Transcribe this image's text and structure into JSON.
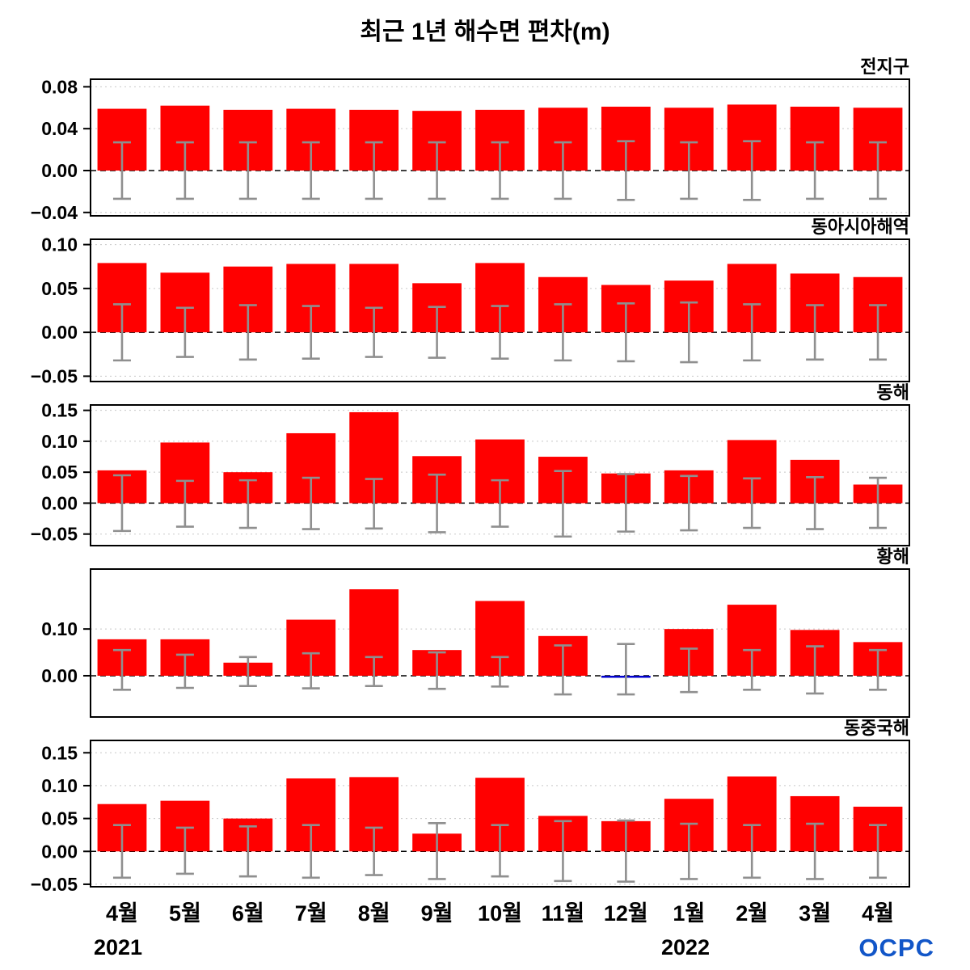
{
  "title": "최근 1년 해수면 편차(m)",
  "colors": {
    "bar": "#ff0000",
    "negative_bar": "#0000cc",
    "error_bar": "#8f8f8f",
    "grid": "#c8c8c8",
    "frame": "#000000",
    "logo": "#1256c8"
  },
  "x_axis": {
    "labels": [
      "4월",
      "5월",
      "6월",
      "7월",
      "8월",
      "9월",
      "10월",
      "11월",
      "12월",
      "1월",
      "2월",
      "3월",
      "4월"
    ],
    "year_left": "2021",
    "year_right": "2022"
  },
  "footer": {
    "logo_text": "OCPC"
  },
  "chart_data": [
    {
      "type": "bar",
      "title": "전지구",
      "categories": [
        "4월",
        "5월",
        "6월",
        "7월",
        "8월",
        "9월",
        "10월",
        "11월",
        "12월",
        "1월",
        "2월",
        "3월",
        "4월"
      ],
      "values": [
        0.059,
        0.062,
        0.058,
        0.059,
        0.058,
        0.057,
        0.058,
        0.06,
        0.061,
        0.06,
        0.063,
        0.061,
        0.06
      ],
      "err_up": [
        0.027,
        0.027,
        0.027,
        0.027,
        0.027,
        0.027,
        0.027,
        0.027,
        0.028,
        0.027,
        0.028,
        0.027,
        0.027
      ],
      "err_down": [
        0.027,
        0.027,
        0.027,
        0.027,
        0.027,
        0.027,
        0.027,
        0.027,
        0.028,
        0.027,
        0.028,
        0.027,
        0.027
      ],
      "ylim": [
        -0.044,
        0.088
      ],
      "yticks": [
        0.08,
        0.04,
        0.0,
        -0.04
      ]
    },
    {
      "type": "bar",
      "title": "동아시아해역",
      "categories": [
        "4월",
        "5월",
        "6월",
        "7월",
        "8월",
        "9월",
        "10월",
        "11월",
        "12월",
        "1월",
        "2월",
        "3월",
        "4월"
      ],
      "values": [
        0.079,
        0.068,
        0.075,
        0.078,
        0.078,
        0.056,
        0.079,
        0.063,
        0.054,
        0.059,
        0.078,
        0.067,
        0.063
      ],
      "err_up": [
        0.032,
        0.028,
        0.031,
        0.03,
        0.028,
        0.029,
        0.03,
        0.032,
        0.033,
        0.034,
        0.032,
        0.031,
        0.031
      ],
      "err_down": [
        0.032,
        0.028,
        0.031,
        0.03,
        0.028,
        0.029,
        0.03,
        0.032,
        0.033,
        0.034,
        0.032,
        0.031,
        0.031
      ],
      "ylim": [
        -0.057,
        0.107
      ],
      "yticks": [
        0.1,
        0.05,
        0.0,
        -0.05
      ]
    },
    {
      "type": "bar",
      "title": "동해",
      "categories": [
        "4월",
        "5월",
        "6월",
        "7월",
        "8월",
        "9월",
        "10월",
        "11월",
        "12월",
        "1월",
        "2월",
        "3월",
        "4월"
      ],
      "values": [
        0.053,
        0.098,
        0.05,
        0.113,
        0.147,
        0.076,
        0.103,
        0.075,
        0.048,
        0.053,
        0.102,
        0.07,
        0.03
      ],
      "err_up": [
        0.045,
        0.036,
        0.037,
        0.041,
        0.039,
        0.046,
        0.037,
        0.052,
        0.047,
        0.044,
        0.04,
        0.042,
        0.041
      ],
      "err_down": [
        0.045,
        0.038,
        0.04,
        0.042,
        0.041,
        0.047,
        0.038,
        0.054,
        0.046,
        0.044,
        0.04,
        0.042,
        0.04
      ],
      "ylim": [
        -0.07,
        0.16
      ],
      "yticks": [
        0.15,
        0.1,
        0.05,
        0.0,
        -0.05
      ]
    },
    {
      "type": "bar",
      "title": "황해",
      "categories": [
        "4월",
        "5월",
        "6월",
        "7월",
        "8월",
        "9월",
        "10월",
        "11월",
        "12월",
        "1월",
        "2월",
        "3월",
        "4월"
      ],
      "values": [
        0.078,
        0.078,
        0.028,
        0.12,
        0.185,
        0.055,
        0.16,
        0.085,
        -0.004,
        0.1,
        0.152,
        0.098,
        0.072
      ],
      "err_up": [
        0.055,
        0.045,
        0.04,
        0.048,
        0.04,
        0.05,
        0.04,
        0.065,
        0.068,
        0.058,
        0.055,
        0.063,
        0.055
      ],
      "err_down": [
        0.03,
        0.026,
        0.022,
        0.027,
        0.022,
        0.028,
        0.023,
        0.04,
        0.04,
        0.035,
        0.03,
        0.038,
        0.03
      ],
      "ylim": [
        -0.09,
        0.23
      ],
      "yticks": [
        0.1,
        0.0
      ]
    },
    {
      "type": "bar",
      "title": "동중국해",
      "categories": [
        "4월",
        "5월",
        "6월",
        "7월",
        "8월",
        "9월",
        "10월",
        "11월",
        "12월",
        "1월",
        "2월",
        "3월",
        "4월"
      ],
      "values": [
        0.072,
        0.077,
        0.05,
        0.111,
        0.113,
        0.027,
        0.112,
        0.054,
        0.046,
        0.08,
        0.114,
        0.084,
        0.068
      ],
      "err_up": [
        0.04,
        0.036,
        0.038,
        0.04,
        0.036,
        0.043,
        0.04,
        0.046,
        0.047,
        0.042,
        0.04,
        0.042,
        0.04
      ],
      "err_down": [
        0.04,
        0.034,
        0.038,
        0.04,
        0.036,
        0.042,
        0.038,
        0.045,
        0.046,
        0.042,
        0.04,
        0.042,
        0.04
      ],
      "ylim": [
        -0.055,
        0.17
      ],
      "yticks": [
        0.15,
        0.1,
        0.05,
        0.0,
        -0.05
      ]
    }
  ]
}
